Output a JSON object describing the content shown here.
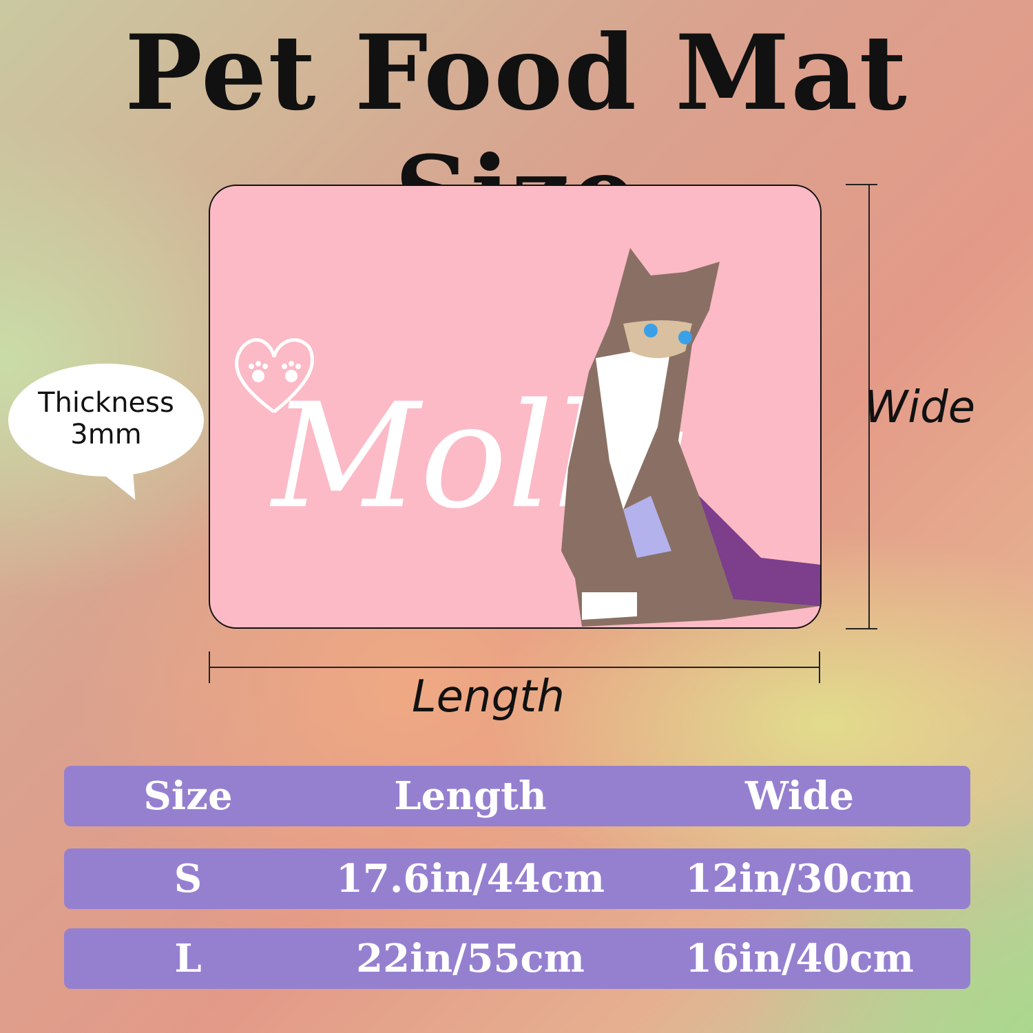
{
  "title": "Pet Food Mat Size",
  "mat": {
    "name_text": "Molly",
    "color": "#fbbac6"
  },
  "thickness": {
    "label": "Thickness",
    "value": "3mm"
  },
  "dimensions": {
    "length_label": "Length",
    "wide_label": "Wide"
  },
  "table": {
    "headers": [
      "Size",
      "Length",
      "Wide"
    ],
    "rows": [
      [
        "S",
        "17.6in/44cm",
        "12in/30cm"
      ],
      [
        "L",
        "22in/55cm",
        "16in/40cm"
      ]
    ],
    "row_color": "#9580d0"
  }
}
